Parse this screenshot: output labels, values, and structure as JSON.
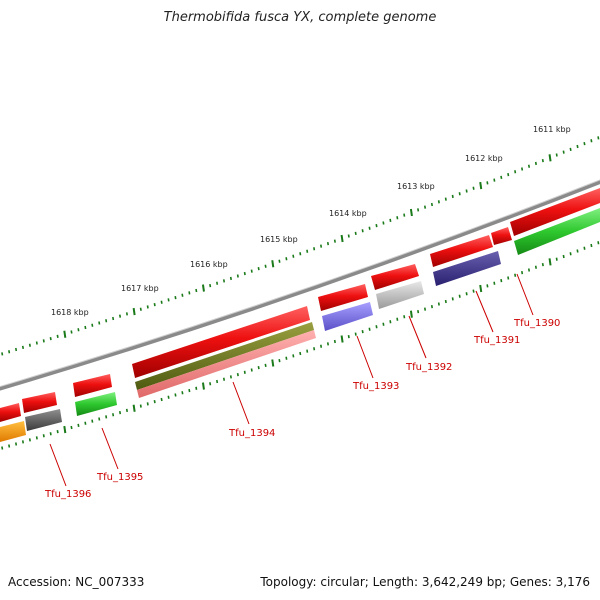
{
  "title": "Thermobifida fusca YX, complete genome",
  "footer": {
    "accession": "Accession: NC_007333",
    "topology": "Topology: circular; Length: 3,642,249 bp; Genes: 3,176"
  },
  "colors": {
    "backbone": "#8a8a8a",
    "tick": "#1a7a1a",
    "label": "#cc0000",
    "red_feature": "#e81010"
  },
  "kbp_labels": [
    "1611 kbp",
    "1612 kbp",
    "1613 kbp",
    "1614 kbp",
    "1615 kbp",
    "1616 kbp",
    "1617 kbp",
    "1618 kbp"
  ],
  "gene_labels": [
    "Tfu_1390",
    "Tfu_1391",
    "Tfu_1392",
    "Tfu_1393",
    "Tfu_1394",
    "Tfu_1395",
    "Tfu_1396"
  ]
}
